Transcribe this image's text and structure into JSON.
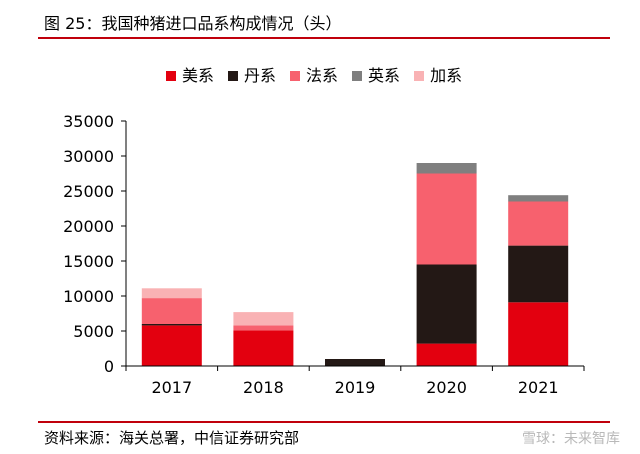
{
  "figure": {
    "title": "图 25：我国种猪进口品系构成情况（头）",
    "source": "资料来源：海关总署，中信证券研究部",
    "watermark": "雪球：未来智库"
  },
  "colors": {
    "rule": "#c0000c",
    "美系": "#e3000f",
    "丹系": "#231815",
    "法系": "#f7616e",
    "英系": "#7f7f7f",
    "加系": "#f9b2b4"
  },
  "chart_data": {
    "type": "bar",
    "stacked": true,
    "categories": [
      "2017",
      "2018",
      "2019",
      "2020",
      "2021"
    ],
    "series": [
      {
        "name": "美系",
        "values": [
          5800,
          5100,
          0,
          3200,
          9100
        ]
      },
      {
        "name": "丹系",
        "values": [
          200,
          0,
          1000,
          11300,
          8100
        ]
      },
      {
        "name": "法系",
        "values": [
          3700,
          700,
          0,
          13000,
          6300
        ]
      },
      {
        "name": "英系",
        "values": [
          0,
          0,
          0,
          1500,
          900
        ]
      },
      {
        "name": "加系",
        "values": [
          1400,
          1900,
          0,
          0,
          0
        ]
      }
    ],
    "yticks": [
      "0",
      "5000",
      "10000",
      "15000",
      "20000",
      "25000",
      "30000",
      "35000"
    ],
    "ylim": [
      0,
      35000
    ],
    "grid": false,
    "legend_position": "top"
  }
}
